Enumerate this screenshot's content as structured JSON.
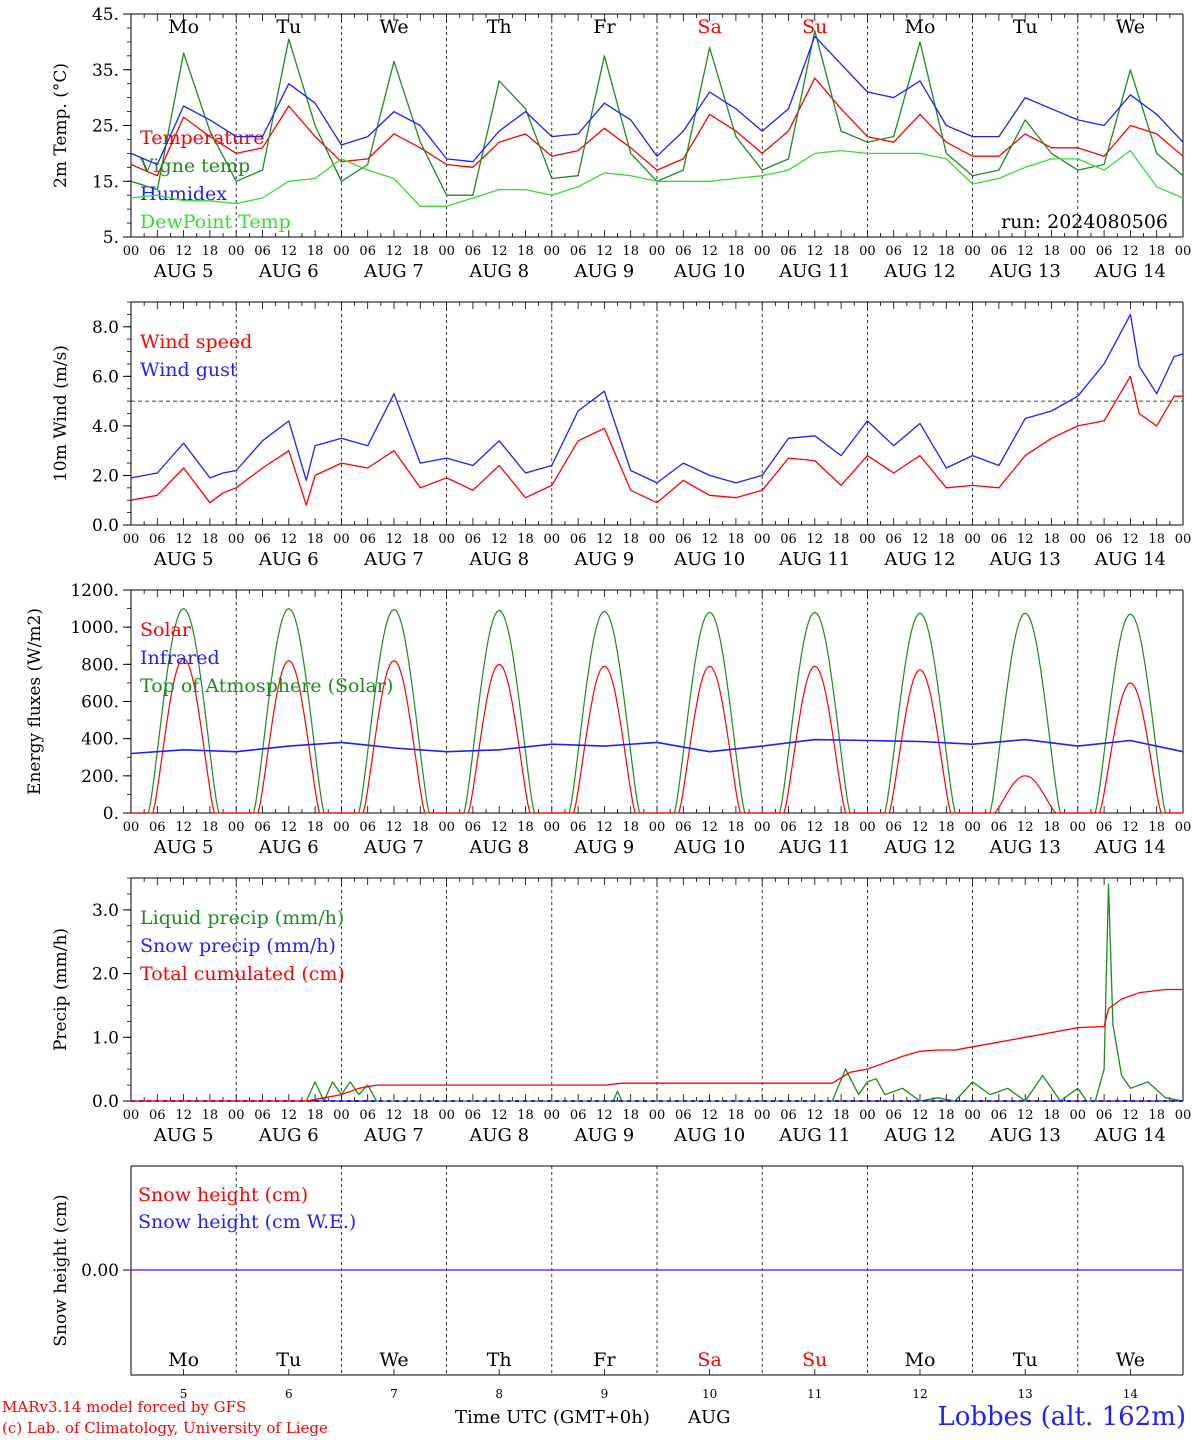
{
  "colors": {
    "red": "#ff0000",
    "green": "#1f8a1f",
    "blue": "#1f1fff",
    "lime": "#33dd33",
    "purple": "#8a2be2",
    "axis": "#000000"
  },
  "x_ticks_hours": [
    "00",
    "06",
    "12",
    "18"
  ],
  "x_ticks_end": "00",
  "date_labels": [
    "AUG  5",
    "AUG  6",
    "AUG  7",
    "AUG  8",
    "AUG  9",
    "AUG 10",
    "AUG 11",
    "AUG 12",
    "AUG 13",
    "AUG 14"
  ],
  "weekdays": [
    {
      "label": "Mo",
      "weekend": false
    },
    {
      "label": "Tu",
      "weekend": false
    },
    {
      "label": "We",
      "weekend": false
    },
    {
      "label": "Th",
      "weekend": false
    },
    {
      "label": "Fr",
      "weekend": false
    },
    {
      "label": "Sa",
      "weekend": true
    },
    {
      "label": "Su",
      "weekend": true
    },
    {
      "label": "Mo",
      "weekend": false
    },
    {
      "label": "Tu",
      "weekend": false
    },
    {
      "label": "We",
      "weekend": false
    }
  ],
  "day_numbers": [
    "5",
    "6",
    "7",
    "8",
    "9",
    "10",
    "11",
    "12",
    "13",
    "14"
  ],
  "run_label": "run: 2024080506",
  "footer": {
    "credit1": "MARv3.14 model forced by GFS",
    "credit2": "(c) Lab. of Climatology, University of Liege",
    "xaxis_label": "Time UTC (GMT+0h)",
    "month": "AUG",
    "station": "Lobbes (alt. 162m)"
  },
  "chart_data": [
    {
      "type": "line",
      "ylabel": "2m Temp. (°C)",
      "ylim": [
        5,
        45
      ],
      "ytick_labels": [
        "45.",
        "35.",
        "25.",
        "15.",
        "5."
      ],
      "x_unit": "hours since Aug 5 00 UTC",
      "series": [
        {
          "name": "Temperature",
          "color": "red",
          "x": [
            0,
            6,
            12,
            18,
            24,
            30,
            36,
            42,
            48,
            54,
            60,
            66,
            72,
            78,
            84,
            90,
            96,
            102,
            108,
            114,
            120,
            126,
            132,
            138,
            144,
            150,
            156,
            162,
            168,
            174,
            180,
            186,
            192,
            198,
            204,
            210,
            216,
            222,
            228,
            234,
            240
          ],
          "y": [
            18,
            16,
            26.5,
            23,
            20,
            21,
            28.5,
            23,
            18.5,
            19,
            23.5,
            21,
            18,
            17.5,
            22,
            23.5,
            19.5,
            20.5,
            24.5,
            21,
            17,
            19,
            27,
            24,
            20,
            24,
            33.5,
            28,
            23,
            22,
            27,
            22,
            19.5,
            19.5,
            23.5,
            21,
            21,
            19.5,
            25,
            23.5,
            19.5
          ]
        },
        {
          "name": "Vigne temp",
          "color": "green",
          "x": [
            0,
            6,
            12,
            18,
            24,
            30,
            36,
            42,
            48,
            54,
            60,
            66,
            72,
            78,
            84,
            90,
            96,
            102,
            108,
            114,
            120,
            126,
            132,
            138,
            144,
            150,
            156,
            162,
            168,
            174,
            180,
            186,
            192,
            198,
            204,
            210,
            216,
            222,
            228,
            234,
            240
          ],
          "y": [
            15,
            13.5,
            38,
            24,
            15,
            17,
            40.5,
            25,
            15,
            18,
            36.5,
            22,
            12.5,
            12.5,
            33,
            28,
            15.5,
            16,
            37.5,
            20,
            15,
            17,
            39,
            23,
            17,
            19,
            42,
            24,
            22,
            23,
            40,
            20,
            16,
            17,
            26,
            20,
            17,
            18,
            35,
            20,
            16
          ]
        },
        {
          "name": "Humidex",
          "color": "blue",
          "x": [
            0,
            6,
            12,
            18,
            24,
            30,
            36,
            42,
            48,
            54,
            60,
            66,
            72,
            78,
            84,
            90,
            96,
            102,
            108,
            114,
            120,
            126,
            132,
            138,
            144,
            150,
            156,
            162,
            168,
            174,
            180,
            186,
            192,
            198,
            204,
            210,
            216,
            222,
            228,
            234,
            240
          ],
          "y": [
            20,
            18,
            28.5,
            26,
            23,
            23,
            32.5,
            29,
            21.5,
            23,
            27.5,
            25,
            19,
            18.5,
            24,
            27.5,
            23,
            23.5,
            29,
            26,
            19.5,
            24,
            31,
            28,
            24,
            28,
            41,
            36,
            31,
            30,
            33,
            25,
            23,
            23,
            30,
            28,
            26,
            25,
            30.5,
            27,
            22
          ]
        },
        {
          "name": "DewPoint Temp",
          "color": "lime",
          "x": [
            0,
            6,
            12,
            18,
            24,
            30,
            36,
            42,
            48,
            54,
            60,
            66,
            72,
            78,
            84,
            90,
            96,
            102,
            108,
            114,
            120,
            126,
            132,
            138,
            144,
            150,
            156,
            162,
            168,
            174,
            180,
            186,
            192,
            198,
            204,
            210,
            216,
            222,
            228,
            234,
            240
          ],
          "y": [
            12,
            12.5,
            11.5,
            11.5,
            11,
            12,
            15,
            15.5,
            19,
            17,
            15.5,
            10.5,
            10.5,
            12,
            13.5,
            13.5,
            12.5,
            14,
            16.5,
            16,
            15,
            15,
            15,
            15.5,
            16,
            17,
            20,
            20.5,
            20,
            20,
            20,
            19,
            14.5,
            15.5,
            17.5,
            19,
            19,
            17,
            20.5,
            14,
            12
          ]
        }
      ]
    },
    {
      "type": "line",
      "ylabel": "10m Wind (m/s)",
      "ylim": [
        0,
        9
      ],
      "ytick_labels": [
        "8.0",
        "6.0",
        "4.0",
        "2.0",
        "0.0"
      ],
      "reference_line_y": 5,
      "x_unit": "hours since Aug 5 00 UTC",
      "series": [
        {
          "name": "Wind speed",
          "color": "red",
          "x": [
            0,
            6,
            12,
            18,
            21,
            24,
            30,
            36,
            40,
            42,
            48,
            54,
            60,
            66,
            72,
            78,
            84,
            90,
            96,
            102,
            108,
            114,
            120,
            126,
            132,
            138,
            144,
            150,
            156,
            162,
            168,
            174,
            180,
            186,
            192,
            198,
            204,
            210,
            216,
            222,
            228,
            230,
            234,
            238,
            240
          ],
          "y": [
            1,
            1.2,
            2.3,
            0.9,
            1.3,
            1.5,
            2.3,
            3,
            0.8,
            2,
            2.5,
            2.3,
            3,
            1.5,
            1.9,
            1.4,
            2.4,
            1.1,
            1.6,
            3.4,
            3.9,
            1.4,
            0.9,
            1.8,
            1.2,
            1.1,
            1.4,
            2.7,
            2.6,
            1.6,
            2.8,
            2.1,
            2.8,
            1.5,
            1.6,
            1.5,
            2.8,
            3.5,
            4,
            4.2,
            6,
            4.5,
            4,
            5.2,
            5.2
          ]
        },
        {
          "name": "Wind gust",
          "color": "blue",
          "x": [
            0,
            6,
            12,
            18,
            21,
            24,
            30,
            36,
            40,
            42,
            48,
            54,
            60,
            66,
            72,
            78,
            84,
            90,
            96,
            102,
            108,
            114,
            120,
            126,
            132,
            138,
            144,
            150,
            156,
            162,
            168,
            174,
            180,
            186,
            192,
            198,
            204,
            210,
            216,
            222,
            228,
            230,
            234,
            238,
            240
          ],
          "y": [
            1.9,
            2.1,
            3.3,
            1.9,
            2.1,
            2.2,
            3.4,
            4.2,
            1.8,
            3.2,
            3.5,
            3.2,
            5.3,
            2.5,
            2.7,
            2.4,
            3.4,
            2.1,
            2.4,
            4.6,
            5.4,
            2.2,
            1.7,
            2.5,
            2,
            1.7,
            2,
            3.5,
            3.6,
            2.8,
            4.2,
            3.2,
            4.1,
            2.3,
            2.8,
            2.4,
            4.3,
            4.6,
            5.2,
            6.5,
            8.5,
            6.4,
            5.3,
            6.8,
            6.9
          ]
        }
      ]
    },
    {
      "type": "line",
      "ylabel": "Energy fluxes (W/m2)",
      "ylim": [
        0,
        1200
      ],
      "ytick_labels": [
        "1200.",
        "1000.",
        "800.",
        "600.",
        "400.",
        "200.",
        "0."
      ],
      "x_unit": "hours since Aug 5 00 UTC",
      "toa_peaks": [
        1100,
        1100,
        1095,
        1090,
        1085,
        1080,
        1080,
        1075,
        1075,
        1070
      ],
      "solar_peaks": [
        830,
        820,
        820,
        800,
        790,
        790,
        790,
        770,
        200,
        700
      ],
      "infrared": {
        "x": [
          0,
          12,
          24,
          36,
          48,
          60,
          72,
          84,
          96,
          108,
          120,
          132,
          144,
          156,
          168,
          180,
          192,
          204,
          216,
          228,
          240
        ],
        "y": [
          320,
          340,
          330,
          360,
          380,
          350,
          330,
          340,
          370,
          360,
          380,
          330,
          360,
          395,
          390,
          385,
          370,
          395,
          360,
          390,
          330
        ]
      },
      "series_names": [
        {
          "name": "Solar",
          "color": "red"
        },
        {
          "name": "Infrared",
          "color": "blue"
        },
        {
          "name": "Top of Atmosphere (Solar)",
          "color": "green"
        }
      ]
    },
    {
      "type": "line",
      "ylabel": "Precip (mm/h)",
      "ylim": [
        0,
        3.5
      ],
      "ytick_labels": [
        "3.0",
        "2.0",
        "1.0",
        "0.0"
      ],
      "x_unit": "hours since Aug 5 00 UTC",
      "series": [
        {
          "name": "Liquid precip (mm/h)",
          "color": "green",
          "x": [
            0,
            40,
            42,
            44,
            46,
            48,
            50,
            52,
            54,
            56,
            110,
            111,
            112,
            160,
            163,
            166,
            168,
            170,
            172,
            176,
            180,
            184,
            188,
            192,
            196,
            200,
            204,
            208,
            212,
            216,
            218,
            220,
            222,
            223,
            224,
            226,
            228,
            232,
            236,
            240
          ],
          "y": [
            0,
            0,
            0.3,
            0,
            0.3,
            0.1,
            0.3,
            0.1,
            0.25,
            0,
            0,
            0.15,
            0,
            0,
            0.5,
            0.1,
            0.3,
            0.35,
            0.1,
            0.2,
            0,
            0.05,
            0,
            0.3,
            0.1,
            0.2,
            0,
            0.4,
            0,
            0.2,
            0,
            0,
            0.5,
            3.4,
            1.2,
            0.4,
            0.2,
            0.3,
            0.05,
            0
          ]
        },
        {
          "name": "Snow precip (mm/h)",
          "color": "blue",
          "x": [
            0,
            240
          ],
          "y": [
            0,
            0
          ]
        },
        {
          "name": "Total cumulated (cm)",
          "color": "red",
          "x": [
            0,
            40,
            48,
            52,
            56,
            108,
            112,
            160,
            164,
            168,
            172,
            176,
            180,
            184,
            188,
            192,
            196,
            200,
            204,
            208,
            216,
            222,
            223,
            226,
            230,
            236,
            240
          ],
          "y": [
            0,
            0,
            0.1,
            0.2,
            0.25,
            0.25,
            0.28,
            0.28,
            0.45,
            0.5,
            0.6,
            0.7,
            0.78,
            0.8,
            0.8,
            0.85,
            0.9,
            0.95,
            1.0,
            1.05,
            1.15,
            1.17,
            1.45,
            1.6,
            1.7,
            1.75,
            1.75
          ]
        }
      ]
    },
    {
      "type": "line",
      "ylabel": "Snow height (cm)",
      "ytick_labels": [
        "0.00"
      ],
      "series": [
        {
          "name": "Snow height (cm)",
          "color": "red",
          "x": [
            0,
            240
          ],
          "y": [
            0,
            0
          ]
        },
        {
          "name": "Snow height (cm W.E.)",
          "color": "blue",
          "x": [
            0,
            240
          ],
          "y": [
            0,
            0
          ]
        }
      ]
    }
  ]
}
